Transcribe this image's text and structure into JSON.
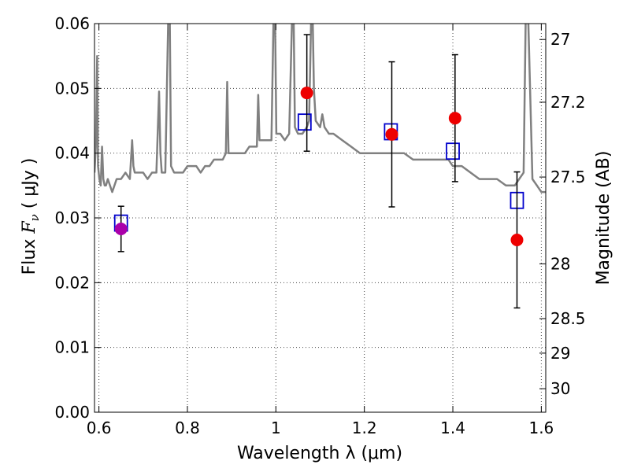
{
  "chart_data": {
    "type": "scatter",
    "title": "",
    "xlabel": "Wavelength  λ (μm)",
    "ylabel": "Flux  F_ν  ( μJy )",
    "ylabel_parts": {
      "before": "Flux  ",
      "symbol": "F",
      "subscript": "ν",
      "after": "  ( μJy )"
    },
    "y2label": "Magnitude (AB)",
    "xlim": [
      0.59,
      1.61
    ],
    "ylim": [
      0.0,
      0.06
    ],
    "grid": true,
    "x_ticks": [
      0.6,
      0.8,
      1.0,
      1.2,
      1.4,
      1.6
    ],
    "x_tick_labels": [
      "0.6",
      "0.8",
      "1",
      "1.2",
      "1.4",
      "1.6"
    ],
    "y_ticks": [
      0.0,
      0.01,
      0.02,
      0.03,
      0.04,
      0.05,
      0.06
    ],
    "y_tick_labels": [
      "0.00",
      "0.01",
      "0.02",
      "0.03",
      "0.04",
      "0.05",
      "0.06"
    ],
    "y2_ticks": [
      27,
      27.2,
      27.5,
      28,
      28.5,
      29,
      30
    ],
    "y2_tick_labels": [
      "27",
      "27.2",
      "27.5",
      "28",
      "28.5",
      "29",
      "30"
    ],
    "series": [
      {
        "type": "line",
        "color": "#808080",
        "x": [
          0.59,
          0.593,
          0.596,
          0.598,
          0.601,
          0.604,
          0.607,
          0.61,
          0.613,
          0.616,
          0.62,
          0.63,
          0.64,
          0.65,
          0.66,
          0.67,
          0.675,
          0.678,
          0.681,
          0.69,
          0.7,
          0.71,
          0.72,
          0.73,
          0.736,
          0.739,
          0.742,
          0.75,
          0.757,
          0.76,
          0.763,
          0.77,
          0.78,
          0.79,
          0.8,
          0.81,
          0.82,
          0.83,
          0.84,
          0.85,
          0.86,
          0.87,
          0.88,
          0.887,
          0.89,
          0.893,
          0.9,
          0.91,
          0.92,
          0.93,
          0.94,
          0.95,
          0.957,
          0.96,
          0.963,
          0.97,
          0.98,
          0.99,
          0.995,
          0.998,
          1.001,
          1.01,
          1.02,
          1.03,
          1.037,
          1.04,
          1.043,
          1.05,
          1.06,
          1.07,
          1.075,
          1.08,
          1.083,
          1.086,
          1.09,
          1.1,
          1.105,
          1.11,
          1.12,
          1.13,
          1.15,
          1.17,
          1.19,
          1.21,
          1.23,
          1.25,
          1.27,
          1.29,
          1.31,
          1.33,
          1.35,
          1.37,
          1.39,
          1.4,
          1.42,
          1.44,
          1.46,
          1.48,
          1.5,
          1.52,
          1.54,
          1.55,
          1.56,
          1.565,
          1.57,
          1.58,
          1.59,
          1.6,
          1.61
        ],
        "y": [
          0.037,
          0.041,
          0.055,
          0.038,
          0.036,
          0.035,
          0.041,
          0.036,
          0.035,
          0.035,
          0.036,
          0.034,
          0.036,
          0.036,
          0.037,
          0.036,
          0.042,
          0.038,
          0.037,
          0.037,
          0.037,
          0.036,
          0.037,
          0.037,
          0.0495,
          0.04,
          0.037,
          0.037,
          0.062,
          0.062,
          0.038,
          0.037,
          0.037,
          0.037,
          0.038,
          0.038,
          0.038,
          0.037,
          0.038,
          0.038,
          0.039,
          0.039,
          0.039,
          0.04,
          0.051,
          0.04,
          0.04,
          0.04,
          0.04,
          0.04,
          0.041,
          0.041,
          0.041,
          0.049,
          0.042,
          0.042,
          0.042,
          0.042,
          0.062,
          0.062,
          0.043,
          0.043,
          0.042,
          0.043,
          0.062,
          0.062,
          0.044,
          0.043,
          0.043,
          0.044,
          0.045,
          0.062,
          0.062,
          0.05,
          0.045,
          0.044,
          0.046,
          0.044,
          0.043,
          0.043,
          0.042,
          0.041,
          0.04,
          0.04,
          0.04,
          0.04,
          0.04,
          0.04,
          0.039,
          0.039,
          0.039,
          0.039,
          0.039,
          0.038,
          0.038,
          0.037,
          0.036,
          0.036,
          0.036,
          0.035,
          0.035,
          0.036,
          0.037,
          0.062,
          0.062,
          0.036,
          0.035,
          0.034,
          0.034
        ]
      },
      {
        "type": "markers",
        "marker": "square-open",
        "color": "#0000cc",
        "x": [
          0.65,
          1.065,
          1.26,
          1.4,
          1.545
        ],
        "y": [
          0.0292,
          0.0448,
          0.0433,
          0.0403,
          0.0327
        ]
      },
      {
        "type": "markers",
        "marker": "circle",
        "color": "#ee0000",
        "x": [
          1.07,
          1.262,
          1.405,
          1.545
        ],
        "y": [
          0.0493,
          0.0429,
          0.0454,
          0.0266
        ],
        "yerr": [
          0.009,
          0.0112,
          0.0098,
          0.0105
        ]
      },
      {
        "type": "markers",
        "marker": "circle",
        "color": "#aa00aa",
        "x": [
          0.65
        ],
        "y": [
          0.0283
        ],
        "yerr": [
          0.0035
        ]
      }
    ]
  }
}
